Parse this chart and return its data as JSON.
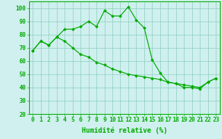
{
  "x": [
    0,
    1,
    2,
    3,
    4,
    5,
    6,
    7,
    8,
    9,
    10,
    11,
    12,
    13,
    14,
    15,
    16,
    17,
    18,
    19,
    20,
    21,
    22,
    23
  ],
  "line1": [
    68,
    75,
    72,
    78,
    84,
    84,
    86,
    90,
    86,
    98,
    94,
    94,
    101,
    91,
    85,
    61,
    51,
    44,
    43,
    40,
    40,
    39,
    44,
    47
  ],
  "line2": [
    68,
    75,
    72,
    78,
    75,
    70,
    65,
    63,
    59,
    57,
    54,
    52,
    50,
    49,
    48,
    47,
    46,
    44,
    43,
    42,
    41,
    40,
    44,
    47
  ],
  "line_color": "#00aa00",
  "bg_color": "#cff0ee",
  "grid_color": "#88ccbb",
  "xlabel": "Humidité relative (%)",
  "ylim": [
    20,
    105
  ],
  "yticks": [
    20,
    30,
    40,
    50,
    60,
    70,
    80,
    90,
    100
  ],
  "xlim": [
    -0.5,
    23.5
  ],
  "xlabel_fontsize": 7,
  "tick_fontsize": 6
}
